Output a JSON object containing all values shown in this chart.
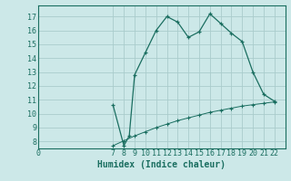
{
  "background_color": "#cce8e8",
  "grid_color": "#aacccc",
  "line_color": "#1a6e60",
  "xlabel": "Humidex (Indice chaleur)",
  "xlabel_fontsize": 7,
  "tick_fontsize": 6,
  "xlim": [
    0,
    23
  ],
  "ylim": [
    7.5,
    17.8
  ],
  "yticks": [
    8,
    9,
    10,
    11,
    12,
    13,
    14,
    15,
    16,
    17
  ],
  "xticks": [
    0,
    7,
    8,
    9,
    10,
    11,
    12,
    13,
    14,
    15,
    16,
    17,
    18,
    19,
    20,
    21,
    22
  ],
  "main_x": [
    7,
    8,
    8.5,
    9,
    10,
    11,
    12,
    13,
    14,
    15,
    16,
    17,
    18,
    19,
    20,
    21,
    22
  ],
  "main_y": [
    10.6,
    7.7,
    8.4,
    12.8,
    14.4,
    16.0,
    17.0,
    16.6,
    15.5,
    15.9,
    17.2,
    16.5,
    15.8,
    15.2,
    13.0,
    11.4,
    10.9
  ],
  "lower_x": [
    7,
    8,
    9,
    10,
    11,
    12,
    13,
    14,
    15,
    16,
    17,
    18,
    19,
    20,
    21,
    22
  ],
  "lower_y": [
    7.7,
    8.05,
    8.4,
    8.7,
    9.0,
    9.25,
    9.5,
    9.7,
    9.9,
    10.1,
    10.25,
    10.4,
    10.55,
    10.65,
    10.75,
    10.85
  ]
}
